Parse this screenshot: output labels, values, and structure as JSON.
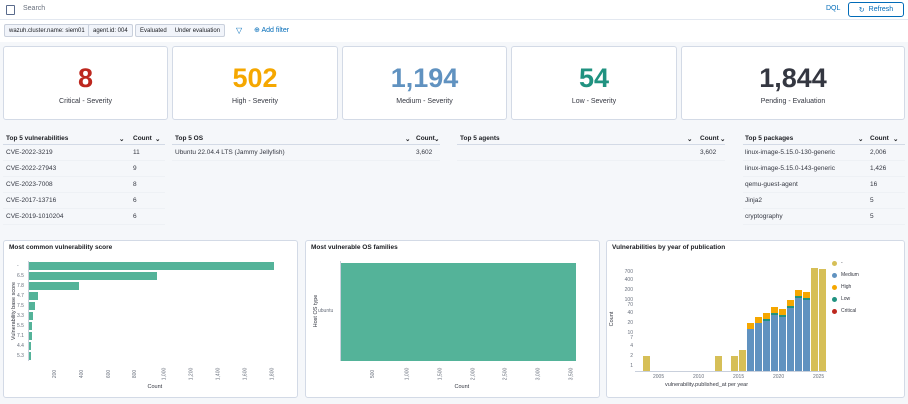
{
  "search": {
    "placeholder": "Search",
    "dql": "DQL",
    "refresh": "Refresh"
  },
  "filters": [
    {
      "label": "wazuh.cluster.name: siem01"
    },
    {
      "label": "agent.id: 004"
    },
    {
      "label": "Evaluated",
      "extra": "Under evaluation"
    }
  ],
  "add_filter": "Add filter",
  "stats": [
    {
      "value": "8",
      "label": "Critical - Severity",
      "color": "#bd271e"
    },
    {
      "value": "502",
      "label": "High - Severity",
      "color": "#f5a700"
    },
    {
      "value": "1,194",
      "label": "Medium - Severity",
      "color": "#6092c0"
    },
    {
      "value": "54",
      "label": "Low - Severity",
      "color": "#209280"
    },
    {
      "value": "1,844",
      "label": "Pending - Evaluation",
      "color": "#343741"
    }
  ],
  "tables": {
    "vuln": {
      "title": "Top 5 vulnerabilities",
      "count": "Count",
      "rows": [
        [
          "CVE-2022-3219",
          "11"
        ],
        [
          "CVE-2022-27943",
          "9"
        ],
        [
          "CVE-2023-7008",
          "8"
        ],
        [
          "CVE-2017-13716",
          "6"
        ],
        [
          "CVE-2019-1010204",
          "6"
        ]
      ]
    },
    "os": {
      "title": "Top 5 OS",
      "count": "Count",
      "rows": [
        [
          "Ubuntu 22.04.4 LTS (Jammy Jellyfish)",
          "3,602"
        ]
      ]
    },
    "agents": {
      "title": "Top 5 agents",
      "count": "Count",
      "rows": [
        [
          "",
          "3,602"
        ]
      ]
    },
    "packages": {
      "title": "Top 5 packages",
      "count": "Count",
      "rows": [
        [
          "linux-image-5.15.0-130-generic",
          "2,006"
        ],
        [
          "linux-image-5.15.0-143-generic",
          "1,426"
        ],
        [
          "qemu-guest-agent",
          "16"
        ],
        [
          "Jinja2",
          "5"
        ],
        [
          "cryptography",
          "5"
        ]
      ]
    }
  },
  "chart_data": [
    {
      "type": "bar",
      "title": "Most common vulnerability score",
      "orientation": "horizontal",
      "categories": [
        "-",
        "6.5",
        "7.8",
        "4.7",
        "7.5",
        "3.3",
        "5.5",
        "7.1",
        "4.4",
        "5.3"
      ],
      "values": [
        1825,
        950,
        370,
        65,
        48,
        32,
        26,
        22,
        18,
        14
      ],
      "xlabel": "Count",
      "ylabel": "Vulnerability base score",
      "xticks": [
        "200",
        "400",
        "600",
        "800",
        "1,000",
        "1,200",
        "1,400",
        "1,600",
        "1,800"
      ],
      "xlim": [
        0,
        1900
      ]
    },
    {
      "type": "bar",
      "title": "Most vulnerable OS families",
      "orientation": "horizontal",
      "categories": [
        "ubuntu"
      ],
      "values": [
        3602
      ],
      "xlabel": "Count",
      "ylabel": "Host OS type",
      "xticks": [
        "500",
        "1,000",
        "1,500",
        "2,000",
        "2,500",
        "3,000",
        "3,500"
      ],
      "xlim": [
        0,
        3750
      ]
    },
    {
      "type": "bar",
      "title": "Vulnerabilities by year of publication",
      "stacked": true,
      "ylog": true,
      "xlabel": "vulnerability.published_at per year",
      "ylabel": "Count",
      "yticks": [
        "700",
        "400",
        "200",
        "100",
        "70",
        "40",
        "20",
        "10",
        "7",
        "4",
        "2",
        "1"
      ],
      "xticks": [
        "2005",
        "2010",
        "2015",
        "2020",
        "2025"
      ],
      "legend": [
        {
          "name": "-",
          "color": "#d6bf57"
        },
        {
          "name": "Medium",
          "color": "#6092c0"
        },
        {
          "name": "High",
          "color": "#f5a700"
        },
        {
          "name": "Low",
          "color": "#209280"
        },
        {
          "name": "Critical",
          "color": "#bd271e"
        }
      ],
      "years": [
        2003,
        2012,
        2014,
        2015,
        2016,
        2017,
        2018,
        2019,
        2020,
        2021,
        2022,
        2023,
        2024,
        2025
      ],
      "totals": [
        2,
        2,
        2,
        3,
        20,
        30,
        40,
        60,
        55,
        100,
        200,
        170,
        950,
        900
      ]
    }
  ]
}
